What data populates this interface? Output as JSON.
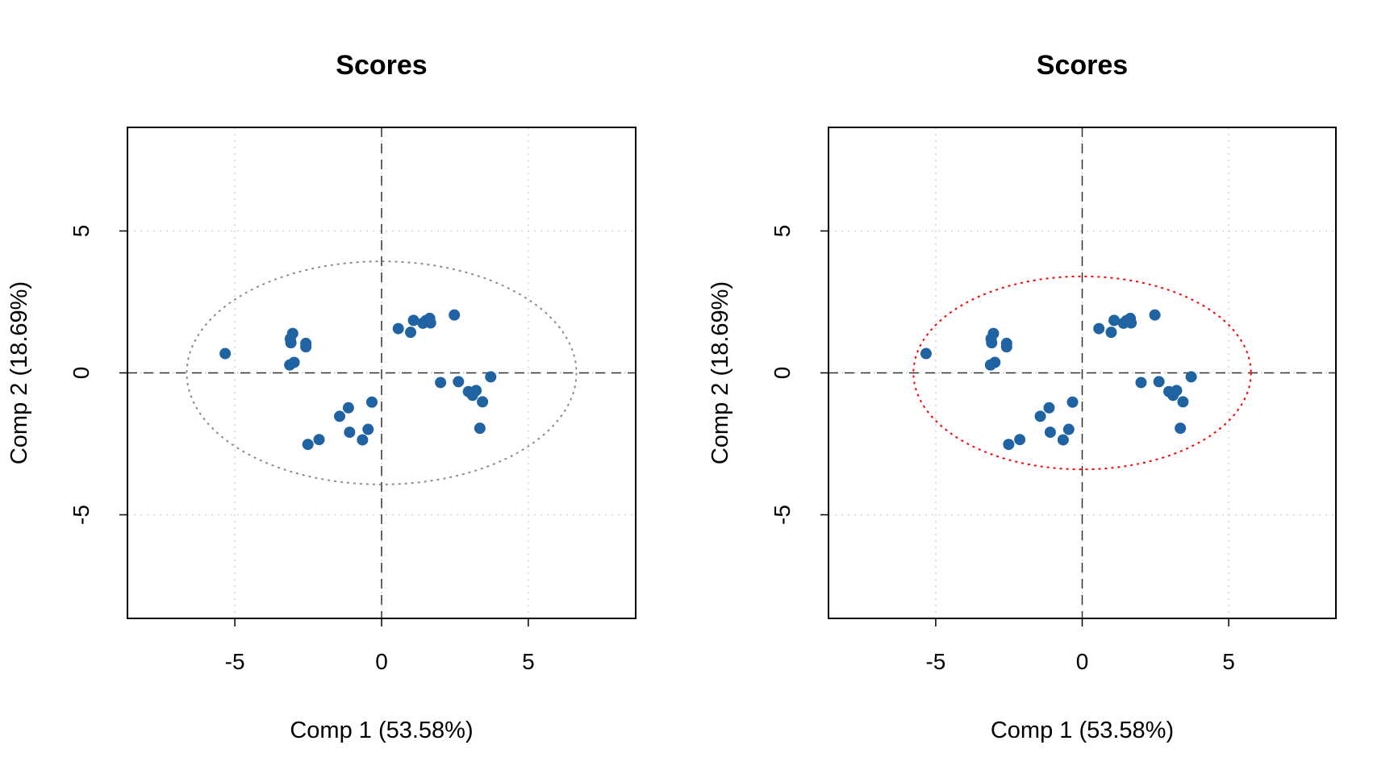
{
  "chart_data": [
    {
      "type": "scatter",
      "title": "Scores",
      "xlabel": "Comp 1 (53.58%)",
      "ylabel": "Comp 2 (18.69%)",
      "xlim": [
        -8.66,
        8.66
      ],
      "ylim": [
        -8.65,
        8.65
      ],
      "xticks": [
        -5,
        0,
        5
      ],
      "yticks": [
        -5,
        0,
        5
      ],
      "grid": true,
      "point_color": "#1F63A3",
      "ellipse": {
        "rx": 6.64,
        "ry": 3.93,
        "color": "#8C8C8C"
      },
      "points": [
        [
          -5.33,
          0.68
        ],
        [
          -3.03,
          1.39
        ],
        [
          -3.11,
          1.2
        ],
        [
          -3.09,
          1.06
        ],
        [
          -2.58,
          1.04
        ],
        [
          -2.58,
          0.92
        ],
        [
          -2.98,
          0.37
        ],
        [
          -3.13,
          0.28
        ],
        [
          0.57,
          1.56
        ],
        [
          0.99,
          1.43
        ],
        [
          1.09,
          1.85
        ],
        [
          1.41,
          1.75
        ],
        [
          1.51,
          1.84
        ],
        [
          1.64,
          1.92
        ],
        [
          1.67,
          1.76
        ],
        [
          2.48,
          2.04
        ],
        [
          2.01,
          -0.34
        ],
        [
          2.62,
          -0.31
        ],
        [
          3.72,
          -0.14
        ],
        [
          2.96,
          -0.66
        ],
        [
          3.1,
          -0.79
        ],
        [
          3.22,
          -0.62
        ],
        [
          3.44,
          -1.02
        ],
        [
          3.35,
          -1.95
        ],
        [
          -0.33,
          -1.03
        ],
        [
          -1.13,
          -1.23
        ],
        [
          -1.43,
          -1.53
        ],
        [
          -1.09,
          -2.09
        ],
        [
          -0.46,
          -1.99
        ],
        [
          -0.65,
          -2.36
        ],
        [
          -2.13,
          -2.35
        ],
        [
          -2.51,
          -2.52
        ]
      ]
    },
    {
      "type": "scatter",
      "title": "Scores",
      "xlabel": "Comp 1 (53.58%)",
      "ylabel": "Comp 2 (18.69%)",
      "xlim": [
        -8.66,
        8.66
      ],
      "ylim": [
        -8.65,
        8.65
      ],
      "xticks": [
        -5,
        0,
        5
      ],
      "yticks": [
        -5,
        0,
        5
      ],
      "grid": true,
      "point_color": "#1F63A3",
      "ellipse": {
        "rx": 5.76,
        "ry": 3.4,
        "color": "#FF0000"
      },
      "points": [
        [
          -5.33,
          0.68
        ],
        [
          -3.03,
          1.39
        ],
        [
          -3.11,
          1.2
        ],
        [
          -3.09,
          1.06
        ],
        [
          -2.58,
          1.04
        ],
        [
          -2.58,
          0.92
        ],
        [
          -2.98,
          0.37
        ],
        [
          -3.13,
          0.28
        ],
        [
          0.57,
          1.56
        ],
        [
          0.99,
          1.43
        ],
        [
          1.09,
          1.85
        ],
        [
          1.41,
          1.75
        ],
        [
          1.51,
          1.84
        ],
        [
          1.64,
          1.92
        ],
        [
          1.67,
          1.76
        ],
        [
          2.48,
          2.04
        ],
        [
          2.01,
          -0.34
        ],
        [
          2.62,
          -0.31
        ],
        [
          3.72,
          -0.14
        ],
        [
          2.96,
          -0.66
        ],
        [
          3.1,
          -0.79
        ],
        [
          3.22,
          -0.62
        ],
        [
          3.44,
          -1.02
        ],
        [
          3.35,
          -1.95
        ],
        [
          -0.33,
          -1.03
        ],
        [
          -1.13,
          -1.23
        ],
        [
          -1.43,
          -1.53
        ],
        [
          -1.09,
          -2.09
        ],
        [
          -0.46,
          -1.99
        ],
        [
          -0.65,
          -2.36
        ],
        [
          -2.13,
          -2.35
        ],
        [
          -2.51,
          -2.52
        ]
      ]
    }
  ]
}
